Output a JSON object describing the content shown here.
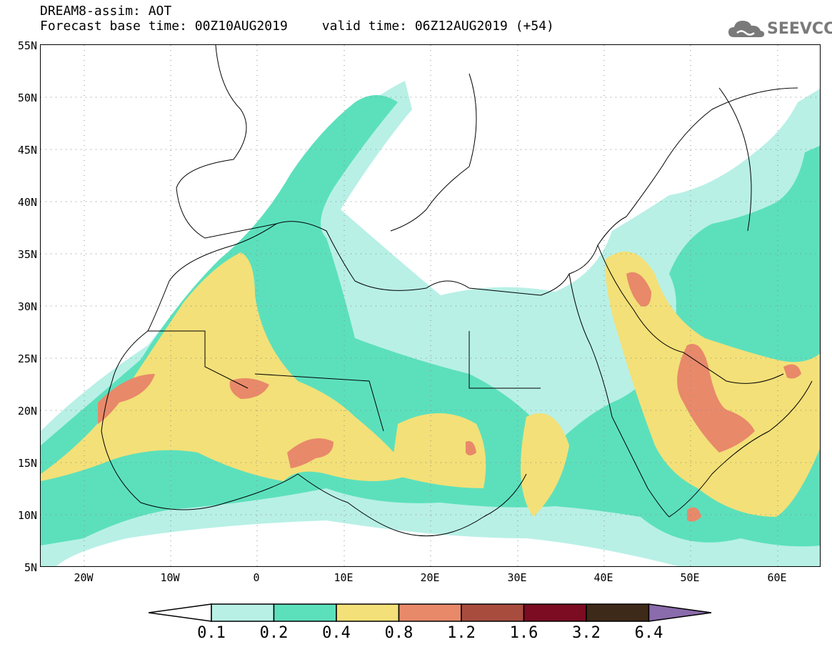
{
  "header": {
    "title_line1": "DREAM8-assim: AOT",
    "base_time": "Forecast base time: 00Z10AUG2019",
    "valid_time": "valid time: 06Z12AUG2019 (+54)"
  },
  "logo": {
    "text": "SEEVCCC",
    "icon": "cloud-icon"
  },
  "map": {
    "lat_labels": [
      "55N",
      "50N",
      "45N",
      "40N",
      "35N",
      "30N",
      "25N",
      "20N",
      "15N",
      "10N",
      "5N"
    ],
    "lon_labels": [
      "20W",
      "10W",
      "0",
      "10E",
      "20E",
      "30E",
      "40E",
      "50E",
      "60E"
    ],
    "lat_range": [
      5,
      55
    ],
    "lon_range": [
      -25,
      65
    ],
    "graticule": "dotted"
  },
  "legend": {
    "labels": [
      "0.1",
      "0.2",
      "0.4",
      "0.8",
      "1.2",
      "1.6",
      "3.2",
      "6.4"
    ],
    "colors": {
      "below": "#ffffff",
      "b1": "#b8f0e6",
      "b2": "#5ce0bc",
      "b3": "#f3e078",
      "b4": "#e8896a",
      "b5": "#a84c3e",
      "b6": "#7b0c22",
      "b7": "#3e2a18",
      "above": "#8a6bab"
    }
  }
}
